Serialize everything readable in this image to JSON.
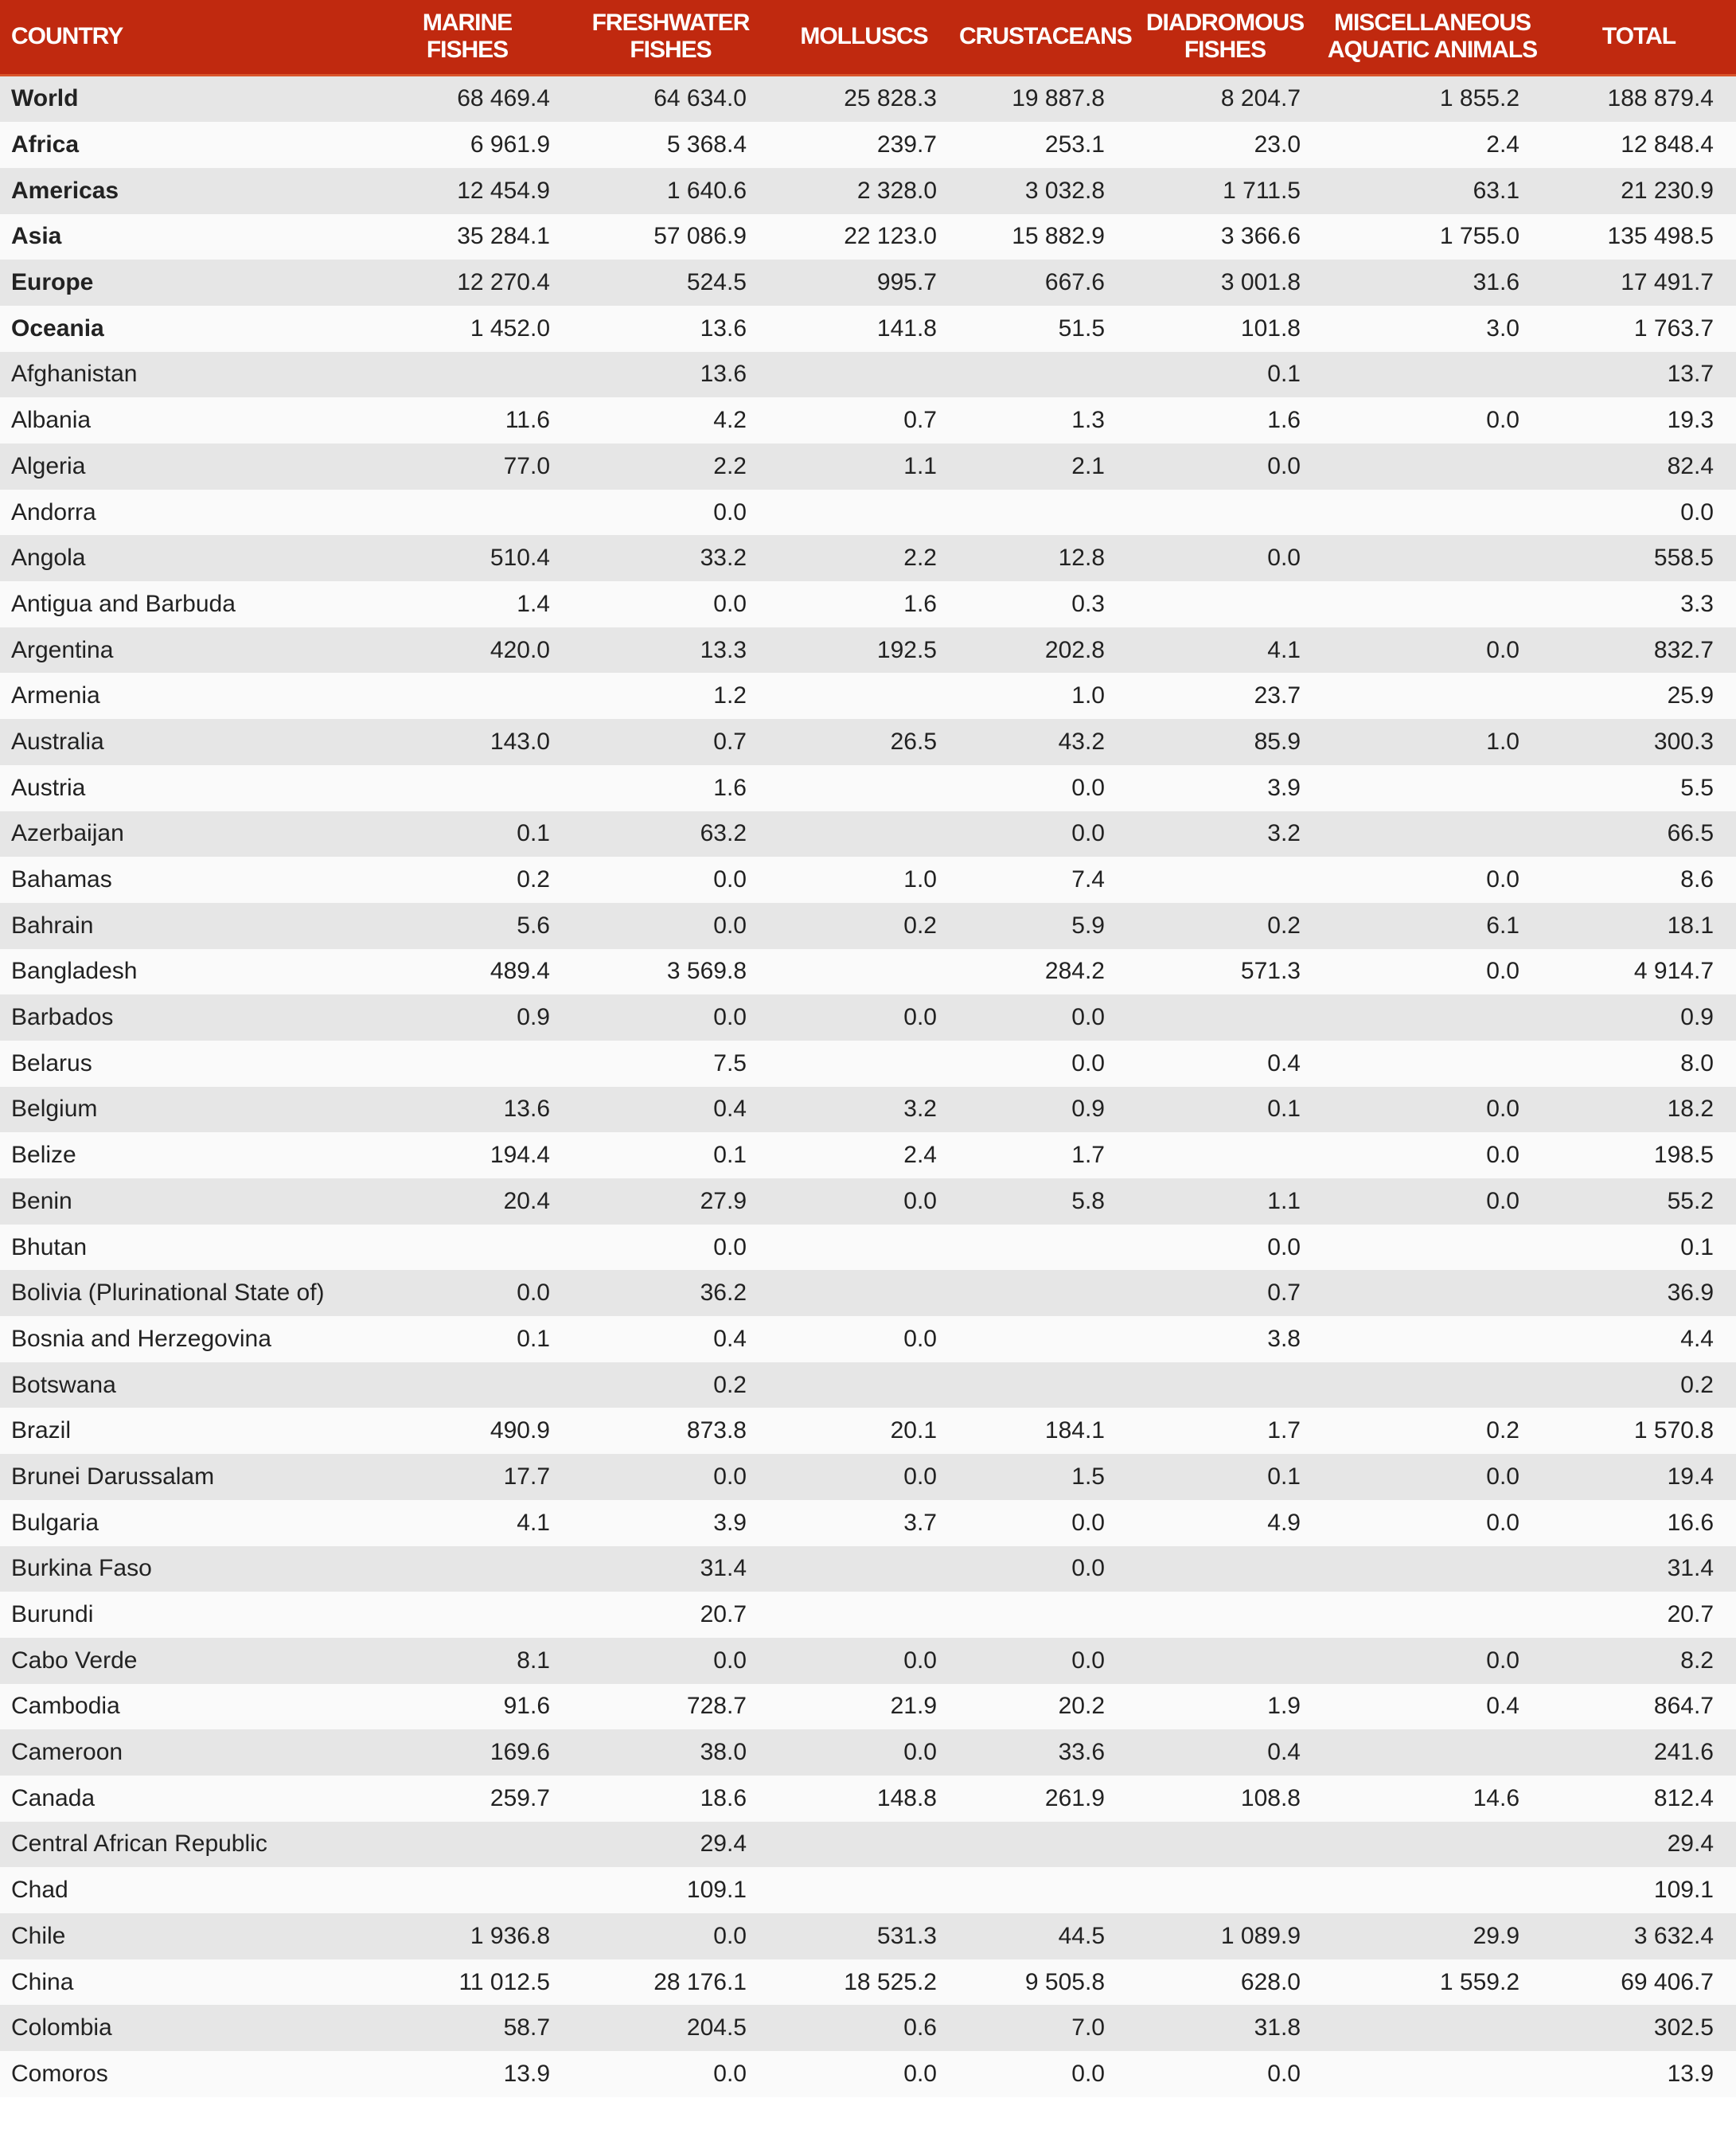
{
  "headers": [
    "COUNTRY",
    "MARINE FISHES",
    "FRESHWATER FISHES",
    "MOLLUSCS",
    "CRUSTACEANS",
    "DIADROMOUS FISHES",
    "MISCELLANEOUS AQUATIC ANIMALS",
    "TOTAL"
  ],
  "colors": {
    "header_bg": "#c0290f",
    "row_alt": "#e6e6e6"
  },
  "rows": [
    {
      "country": "World",
      "region": true,
      "values": [
        "68 469.4",
        "64 634.0",
        "25 828.3",
        "19 887.8",
        "8 204.7",
        "1 855.2",
        "188 879.4"
      ]
    },
    {
      "country": "Africa",
      "region": true,
      "values": [
        "6 961.9",
        "5 368.4",
        "239.7",
        "253.1",
        "23.0",
        "2.4",
        "12 848.4"
      ]
    },
    {
      "country": "Americas",
      "region": true,
      "values": [
        "12 454.9",
        "1 640.6",
        "2 328.0",
        "3 032.8",
        "1 711.5",
        "63.1",
        "21 230.9"
      ]
    },
    {
      "country": "Asia",
      "region": true,
      "values": [
        "35 284.1",
        "57 086.9",
        "22 123.0",
        "15 882.9",
        "3 366.6",
        "1 755.0",
        "135 498.5"
      ]
    },
    {
      "country": "Europe",
      "region": true,
      "values": [
        "12 270.4",
        "524.5",
        "995.7",
        "667.6",
        "3 001.8",
        "31.6",
        "17 491.7"
      ]
    },
    {
      "country": "Oceania",
      "region": true,
      "values": [
        "1 452.0",
        "13.6",
        "141.8",
        "51.5",
        "101.8",
        "3.0",
        "1 763.7"
      ]
    },
    {
      "country": "Afghanistan",
      "values": [
        "",
        "13.6",
        "",
        "",
        "0.1",
        "",
        "13.7"
      ]
    },
    {
      "country": "Albania",
      "values": [
        "11.6",
        "4.2",
        "0.7",
        "1.3",
        "1.6",
        "0.0",
        "19.3"
      ]
    },
    {
      "country": "Algeria",
      "values": [
        "77.0",
        "2.2",
        "1.1",
        "2.1",
        "0.0",
        "",
        "82.4"
      ]
    },
    {
      "country": "Andorra",
      "values": [
        "",
        "0.0",
        "",
        "",
        "",
        "",
        "0.0"
      ]
    },
    {
      "country": "Angola",
      "values": [
        "510.4",
        "33.2",
        "2.2",
        "12.8",
        "0.0",
        "",
        "558.5"
      ]
    },
    {
      "country": "Antigua and Barbuda",
      "values": [
        "1.4",
        "0.0",
        "1.6",
        "0.3",
        "",
        "",
        "3.3"
      ]
    },
    {
      "country": "Argentina",
      "values": [
        "420.0",
        "13.3",
        "192.5",
        "202.8",
        "4.1",
        "0.0",
        "832.7"
      ]
    },
    {
      "country": "Armenia",
      "values": [
        "",
        "1.2",
        "",
        "1.0",
        "23.7",
        "",
        "25.9"
      ]
    },
    {
      "country": "Australia",
      "values": [
        "143.0",
        "0.7",
        "26.5",
        "43.2",
        "85.9",
        "1.0",
        "300.3"
      ]
    },
    {
      "country": "Austria",
      "values": [
        "",
        "1.6",
        "",
        "0.0",
        "3.9",
        "",
        "5.5"
      ]
    },
    {
      "country": "Azerbaijan",
      "values": [
        "0.1",
        "63.2",
        "",
        "0.0",
        "3.2",
        "",
        "66.5"
      ]
    },
    {
      "country": "Bahamas",
      "values": [
        "0.2",
        "0.0",
        "1.0",
        "7.4",
        "",
        "0.0",
        "8.6"
      ]
    },
    {
      "country": "Bahrain",
      "values": [
        "5.6",
        "0.0",
        "0.2",
        "5.9",
        "0.2",
        "6.1",
        "18.1"
      ]
    },
    {
      "country": "Bangladesh",
      "values": [
        "489.4",
        "3 569.8",
        "",
        "284.2",
        "571.3",
        "0.0",
        "4 914.7"
      ]
    },
    {
      "country": "Barbados",
      "values": [
        "0.9",
        "0.0",
        "0.0",
        "0.0",
        "",
        "",
        "0.9"
      ]
    },
    {
      "country": "Belarus",
      "values": [
        "",
        "7.5",
        "",
        "0.0",
        "0.4",
        "",
        "8.0"
      ]
    },
    {
      "country": "Belgium",
      "values": [
        "13.6",
        "0.4",
        "3.2",
        "0.9",
        "0.1",
        "0.0",
        "18.2"
      ]
    },
    {
      "country": "Belize",
      "values": [
        "194.4",
        "0.1",
        "2.4",
        "1.7",
        "",
        "0.0",
        "198.5"
      ]
    },
    {
      "country": "Benin",
      "values": [
        "20.4",
        "27.9",
        "0.0",
        "5.8",
        "1.1",
        "0.0",
        "55.2"
      ]
    },
    {
      "country": "Bhutan",
      "values": [
        "",
        "0.0",
        "",
        "",
        "0.0",
        "",
        "0.1"
      ]
    },
    {
      "country": "Bolivia (Plurinational State of)",
      "values": [
        "0.0",
        "36.2",
        "",
        "",
        "0.7",
        "",
        "36.9"
      ]
    },
    {
      "country": "Bosnia and Herzegovina",
      "values": [
        "0.1",
        "0.4",
        "0.0",
        "",
        "3.8",
        "",
        "4.4"
      ]
    },
    {
      "country": "Botswana",
      "values": [
        "",
        "0.2",
        "",
        "",
        "",
        "",
        "0.2"
      ]
    },
    {
      "country": "Brazil",
      "values": [
        "490.9",
        "873.8",
        "20.1",
        "184.1",
        "1.7",
        "0.2",
        "1 570.8"
      ]
    },
    {
      "country": "Brunei Darussalam",
      "values": [
        "17.7",
        "0.0",
        "0.0",
        "1.5",
        "0.1",
        "0.0",
        "19.4"
      ]
    },
    {
      "country": "Bulgaria",
      "values": [
        "4.1",
        "3.9",
        "3.7",
        "0.0",
        "4.9",
        "0.0",
        "16.6"
      ]
    },
    {
      "country": "Burkina Faso",
      "values": [
        "",
        "31.4",
        "",
        "0.0",
        "",
        "",
        "31.4"
      ]
    },
    {
      "country": "Burundi",
      "values": [
        "",
        "20.7",
        "",
        "",
        "",
        "",
        "20.7"
      ]
    },
    {
      "country": "Cabo Verde",
      "values": [
        "8.1",
        "0.0",
        "0.0",
        "0.0",
        "",
        "0.0",
        "8.2"
      ]
    },
    {
      "country": "Cambodia",
      "values": [
        "91.6",
        "728.7",
        "21.9",
        "20.2",
        "1.9",
        "0.4",
        "864.7"
      ]
    },
    {
      "country": "Cameroon",
      "values": [
        "169.6",
        "38.0",
        "0.0",
        "33.6",
        "0.4",
        "",
        "241.6"
      ]
    },
    {
      "country": "Canada",
      "values": [
        "259.7",
        "18.6",
        "148.8",
        "261.9",
        "108.8",
        "14.6",
        "812.4"
      ]
    },
    {
      "country": "Central African Republic",
      "values": [
        "",
        "29.4",
        "",
        "",
        "",
        "",
        "29.4"
      ]
    },
    {
      "country": "Chad",
      "values": [
        "",
        "109.1",
        "",
        "",
        "",
        "",
        "109.1"
      ]
    },
    {
      "country": "Chile",
      "values": [
        "1 936.8",
        "0.0",
        "531.3",
        "44.5",
        "1 089.9",
        "29.9",
        "3 632.4"
      ]
    },
    {
      "country": "China",
      "values": [
        "11 012.5",
        "28 176.1",
        "18 525.2",
        "9 505.8",
        "628.0",
        "1 559.2",
        "69 406.7"
      ]
    },
    {
      "country": "Colombia",
      "values": [
        "58.7",
        "204.5",
        "0.6",
        "7.0",
        "31.8",
        "",
        "302.5"
      ]
    },
    {
      "country": "Comoros",
      "values": [
        "13.9",
        "0.0",
        "0.0",
        "0.0",
        "0.0",
        "",
        "13.9"
      ]
    }
  ]
}
